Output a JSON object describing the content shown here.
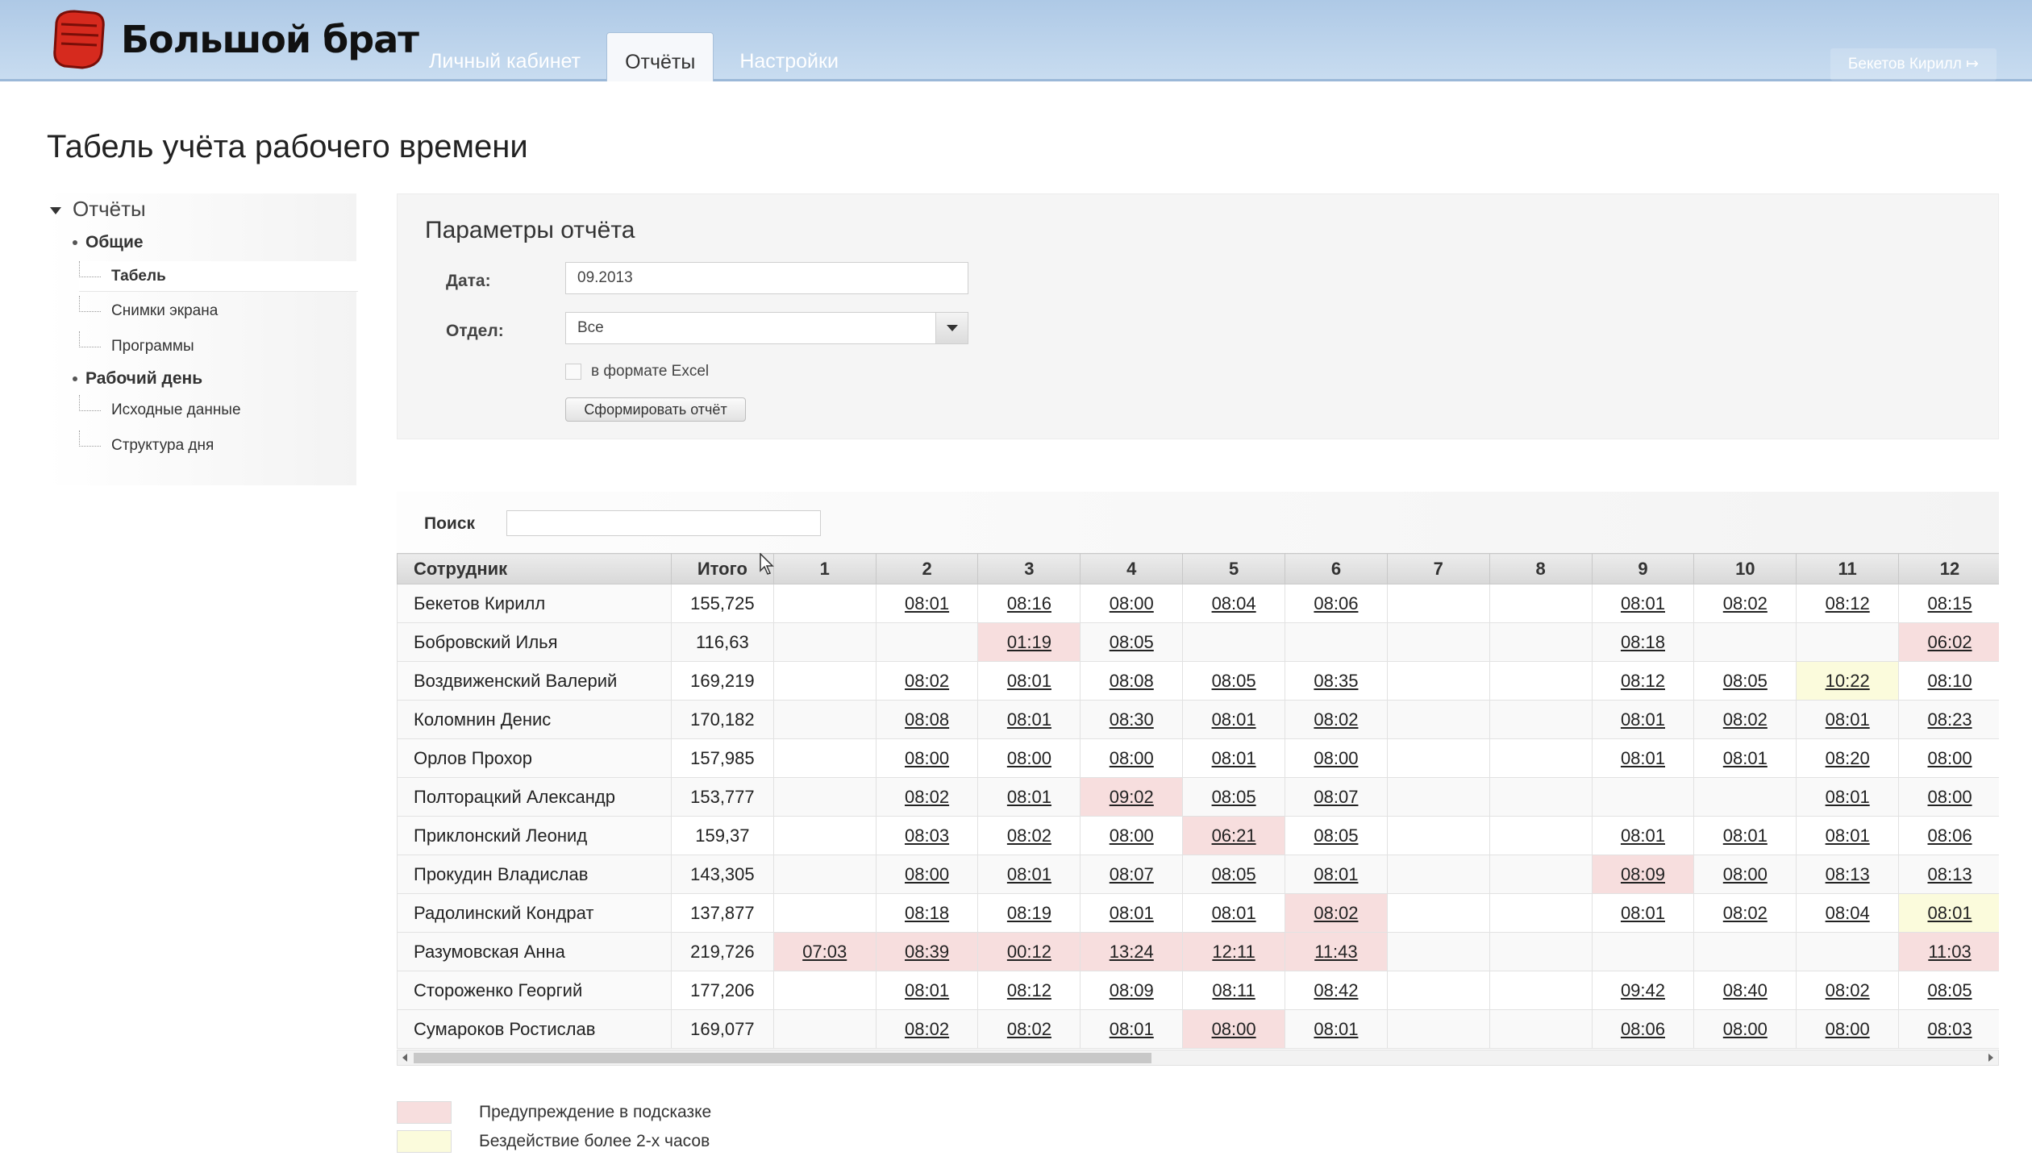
{
  "header": {
    "logo_text": "Большой брат",
    "tabs": [
      {
        "label": "Личный кабинет"
      },
      {
        "label": "Отчёты"
      },
      {
        "label": "Настройки"
      }
    ],
    "user_label": "Бекетов Кирилл ↦"
  },
  "page_title": "Табель учёта рабочего времени",
  "sidebar": {
    "root": "Отчёты",
    "groups": [
      {
        "label": "Общие",
        "items": [
          "Табель",
          "Снимки экрана",
          "Программы"
        ]
      },
      {
        "label": "Рабочий день",
        "items": [
          "Исходные данные",
          "Структура дня"
        ]
      }
    ]
  },
  "params": {
    "title": "Параметры отчёта",
    "date_label": "Дата:",
    "date_value": "09.2013",
    "dept_label": "Отдел:",
    "dept_value": "Все",
    "excel_label": "в формате Excel",
    "submit_label": "Сформировать отчёт"
  },
  "search": {
    "label": "Поиск",
    "value": ""
  },
  "table": {
    "headers": [
      "Сотрудник",
      "Итого",
      "1",
      "2",
      "3",
      "4",
      "5",
      "6",
      "7",
      "8",
      "9",
      "10",
      "11",
      "12"
    ],
    "rows": [
      {
        "name": "Бекетов Кирилл",
        "total": "155,725",
        "days": [
          "",
          "08:01",
          "08:16",
          "08:00",
          "08:04",
          "08:06",
          "",
          "",
          "08:01",
          "08:02",
          "08:12",
          "08:15"
        ],
        "flags": [
          "",
          "",
          "",
          "",
          "",
          "",
          "",
          "",
          "",
          "",
          "",
          ""
        ]
      },
      {
        "name": "Бобровский Илья",
        "total": "116,63",
        "days": [
          "",
          "",
          "01:19",
          "08:05",
          "",
          "",
          "",
          "",
          "08:18",
          "",
          "",
          "06:02"
        ],
        "flags": [
          "",
          "",
          "warn",
          "",
          "",
          "",
          "",
          "",
          "",
          "",
          "",
          "warn"
        ]
      },
      {
        "name": "Воздвиженский Валерий",
        "total": "169,219",
        "days": [
          "",
          "08:02",
          "08:01",
          "08:08",
          "08:05",
          "08:35",
          "",
          "",
          "08:12",
          "08:05",
          "10:22",
          "08:10"
        ],
        "flags": [
          "",
          "",
          "",
          "",
          "",
          "",
          "",
          "",
          "",
          "",
          "idle",
          ""
        ]
      },
      {
        "name": "Коломнин Денис",
        "total": "170,182",
        "days": [
          "",
          "08:08",
          "08:01",
          "08:30",
          "08:01",
          "08:02",
          "",
          "",
          "08:01",
          "08:02",
          "08:01",
          "08:23"
        ],
        "flags": [
          "",
          "",
          "",
          "",
          "",
          "",
          "",
          "",
          "",
          "",
          "",
          ""
        ]
      },
      {
        "name": "Орлов Прохор",
        "total": "157,985",
        "days": [
          "",
          "08:00",
          "08:00",
          "08:00",
          "08:01",
          "08:00",
          "",
          "",
          "08:01",
          "08:01",
          "08:20",
          "08:00"
        ],
        "flags": [
          "",
          "",
          "",
          "",
          "",
          "",
          "",
          "",
          "",
          "",
          "",
          ""
        ]
      },
      {
        "name": "Полторацкий Александр",
        "total": "153,777",
        "days": [
          "",
          "08:02",
          "08:01",
          "09:02",
          "08:05",
          "08:07",
          "",
          "",
          "",
          "",
          "08:01",
          "08:00"
        ],
        "flags": [
          "",
          "",
          "",
          "warn",
          "",
          "",
          "",
          "",
          "",
          "",
          "",
          ""
        ]
      },
      {
        "name": "Приклонский Леонид",
        "total": "159,37",
        "days": [
          "",
          "08:03",
          "08:02",
          "08:00",
          "06:21",
          "08:05",
          "",
          "",
          "08:01",
          "08:01",
          "08:01",
          "08:06"
        ],
        "flags": [
          "",
          "",
          "",
          "",
          "warn",
          "",
          "",
          "",
          "",
          "",
          "",
          ""
        ]
      },
      {
        "name": "Прокудин Владислав",
        "total": "143,305",
        "days": [
          "",
          "08:00",
          "08:01",
          "08:07",
          "08:05",
          "08:01",
          "",
          "",
          "08:09",
          "08:00",
          "08:13",
          "08:13"
        ],
        "flags": [
          "",
          "",
          "",
          "",
          "",
          "",
          "",
          "",
          "warn",
          "",
          "",
          ""
        ]
      },
      {
        "name": "Радолинский Кондрат",
        "total": "137,877",
        "days": [
          "",
          "08:18",
          "08:19",
          "08:01",
          "08:01",
          "08:02",
          "",
          "",
          "08:01",
          "08:02",
          "08:04",
          "08:01"
        ],
        "flags": [
          "",
          "",
          "",
          "",
          "",
          "warn",
          "",
          "",
          "",
          "",
          "",
          "idle"
        ]
      },
      {
        "name": "Разумовская Анна",
        "total": "219,726",
        "days": [
          "07:03",
          "08:39",
          "00:12",
          "13:24",
          "12:11",
          "11:43",
          "",
          "",
          "",
          "",
          "",
          "11:03"
        ],
        "flags": [
          "warn",
          "warn",
          "warn",
          "warn",
          "warn",
          "warn",
          "",
          "",
          "",
          "",
          "",
          "warn"
        ]
      },
      {
        "name": "Стороженко Георгий",
        "total": "177,206",
        "days": [
          "",
          "08:01",
          "08:12",
          "08:09",
          "08:11",
          "08:42",
          "",
          "",
          "09:42",
          "08:40",
          "08:02",
          "08:05"
        ],
        "flags": [
          "",
          "",
          "",
          "",
          "",
          "",
          "",
          "",
          "",
          "",
          "",
          ""
        ]
      },
      {
        "name": "Сумароков Ростислав",
        "total": "169,077",
        "days": [
          "",
          "08:02",
          "08:02",
          "08:01",
          "08:00",
          "08:01",
          "",
          "",
          "08:06",
          "08:00",
          "08:00",
          "08:03"
        ],
        "flags": [
          "",
          "",
          "",
          "",
          "warn",
          "",
          "",
          "",
          "",
          "",
          "",
          ""
        ]
      }
    ]
  },
  "legend": [
    {
      "label": "Предупреждение в подсказке",
      "color": "#f7dede"
    },
    {
      "label": "Бездействие более 2-х часов",
      "color": "#fbfbdc"
    }
  ],
  "colors": {
    "header": "#aec9e6",
    "warn": "#f7dede",
    "idle": "#fbfbdc"
  }
}
